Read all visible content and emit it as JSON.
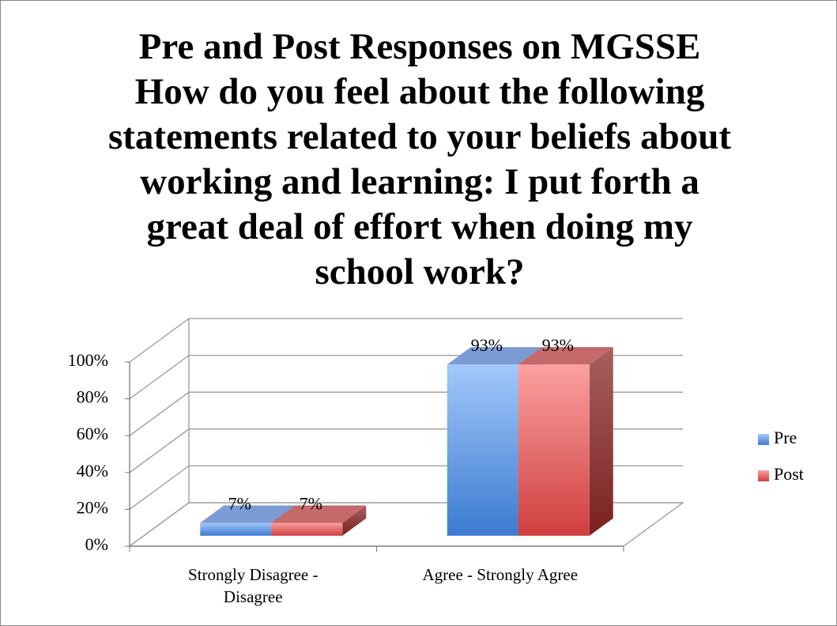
{
  "chart_data": {
    "type": "bar3d",
    "title": "Pre and Post Responses on MGSSE How do you feel about the following statements related to your beliefs about working and learning:  I put forth a great deal of effort when doing my school work?",
    "categories": [
      "Strongly Disagree - Disagree",
      "Agree - Strongly Agree"
    ],
    "series": [
      {
        "name": "Pre",
        "color": "#4f86d6",
        "values": [
          7,
          93
        ],
        "value_labels": [
          "7%",
          "93%"
        ]
      },
      {
        "name": "Post",
        "color": "#d94c4c",
        "values": [
          7,
          93
        ],
        "value_labels": [
          "7%",
          "93%"
        ]
      }
    ],
    "ylim": [
      0,
      100
    ],
    "yticks": [
      {
        "value": 0,
        "label": "0%"
      },
      {
        "value": 20,
        "label": "20%"
      },
      {
        "value": 40,
        "label": "40%"
      },
      {
        "value": 60,
        "label": "60%"
      },
      {
        "value": 80,
        "label": "80%"
      },
      {
        "value": 100,
        "label": "100%"
      }
    ],
    "grid": true,
    "legend": "right"
  }
}
